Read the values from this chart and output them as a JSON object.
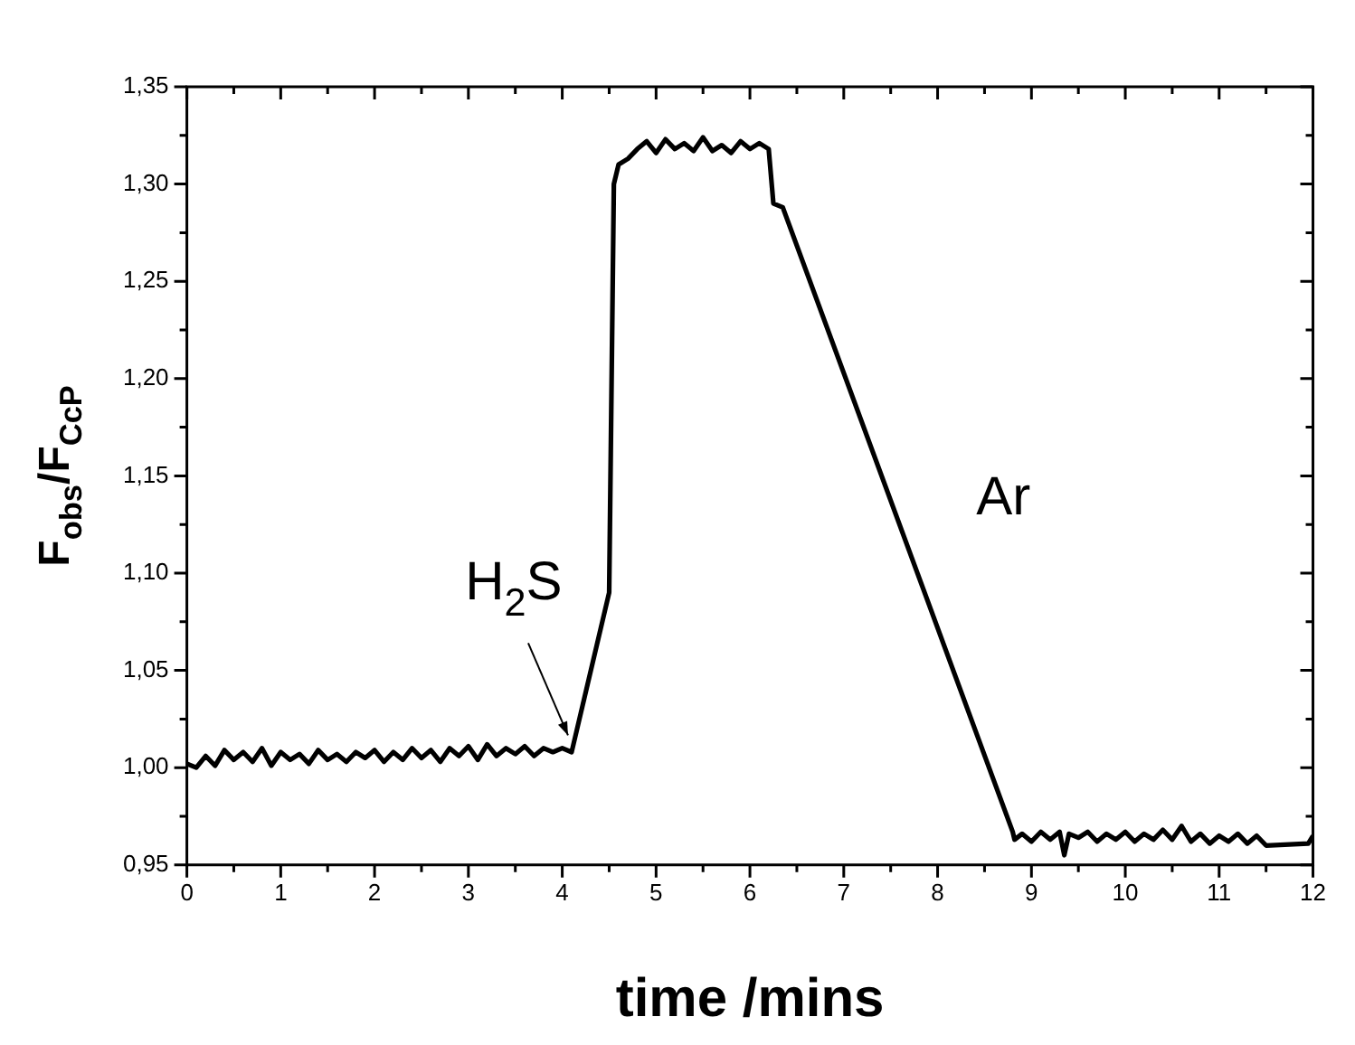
{
  "chart_data": {
    "type": "line",
    "xlabel": "time /mins",
    "ylabel": "F$_{obs}$/F$_{CcP}$",
    "annotations": [
      {
        "text": "H$_{2}$S",
        "x": 4.1,
        "y": 1.012
      },
      "Ar"
    ],
    "x": [
      0,
      0.1,
      0.2,
      0.3,
      0.4,
      0.5,
      0.6,
      0.7,
      0.8,
      0.9,
      1.0,
      1.1,
      1.2,
      1.3,
      1.4,
      1.5,
      1.6,
      1.7,
      1.8,
      1.9,
      2.0,
      2.1,
      2.2,
      2.3,
      2.4,
      2.5,
      2.6,
      2.7,
      2.8,
      2.9,
      3.0,
      3.1,
      3.2,
      3.3,
      3.4,
      3.5,
      3.6,
      3.7,
      3.8,
      3.9,
      4.0,
      4.1,
      4.5,
      4.55,
      4.6,
      4.7,
      4.8,
      4.9,
      5.0,
      5.1,
      5.2,
      5.3,
      5.4,
      5.5,
      5.6,
      5.7,
      5.8,
      5.9,
      6.0,
      6.1,
      6.2,
      6.25,
      6.35,
      8.8,
      8.82,
      8.9,
      9.0,
      9.1,
      9.2,
      9.3,
      9.35,
      9.4,
      9.5,
      9.6,
      9.7,
      9.8,
      9.9,
      10.0,
      10.1,
      10.2,
      10.3,
      10.4,
      10.5,
      10.6,
      10.7,
      10.8,
      10.9,
      11.0,
      11.1,
      11.2,
      11.3,
      11.4,
      11.5,
      11.95,
      12
    ],
    "series": [
      {
        "color": "#000000",
        "values": [
          1.002,
          1.0,
          1.006,
          1.001,
          1.009,
          1.004,
          1.008,
          1.003,
          1.01,
          1.001,
          1.008,
          1.004,
          1.007,
          1.002,
          1.009,
          1.004,
          1.007,
          1.003,
          1.008,
          1.005,
          1.009,
          1.003,
          1.008,
          1.004,
          1.01,
          1.005,
          1.009,
          1.003,
          1.01,
          1.006,
          1.011,
          1.004,
          1.012,
          1.006,
          1.01,
          1.007,
          1.011,
          1.006,
          1.01,
          1.008,
          1.01,
          1.008,
          1.09,
          1.3,
          1.31,
          1.313,
          1.318,
          1.322,
          1.316,
          1.323,
          1.318,
          1.321,
          1.317,
          1.324,
          1.317,
          1.32,
          1.316,
          1.322,
          1.318,
          1.321,
          1.318,
          1.29,
          1.288,
          0.967,
          0.963,
          0.966,
          0.962,
          0.967,
          0.963,
          0.967,
          0.955,
          0.966,
          0.964,
          0.967,
          0.962,
          0.966,
          0.963,
          0.967,
          0.962,
          0.966,
          0.963,
          0.968,
          0.963,
          0.97,
          0.962,
          0.966,
          0.961,
          0.965,
          0.962,
          0.966,
          0.961,
          0.965,
          0.96,
          0.961,
          0.965
        ]
      }
    ],
    "xlim": [
      0,
      12
    ],
    "xticks": [
      0,
      {
        "value": 0.5,
        "label": null
      },
      1,
      {
        "value": 1.5,
        "label": null
      },
      2,
      {
        "value": 2.5,
        "label": null
      },
      3,
      {
        "value": 3.5,
        "label": null
      },
      4,
      {
        "value": 4.5,
        "label": null
      },
      5,
      {
        "value": 5.5,
        "label": null
      },
      6,
      {
        "value": 6.5,
        "label": null
      },
      7,
      {
        "value": 7.5,
        "label": null
      },
      8,
      {
        "value": 8.5,
        "label": null
      },
      9,
      {
        "value": 9.5,
        "label": null
      },
      10,
      {
        "value": 10.5,
        "label": null
      },
      11,
      {
        "value": 11.5,
        "label": null
      },
      12
    ],
    "ylim": [
      0.95,
      1.35
    ],
    "yticks": [
      {
        "value": 0.95,
        "label": "0,95"
      },
      {
        "value": 0.975,
        "label": null
      },
      {
        "value": 1.0,
        "label": "1,00"
      },
      {
        "value": 1.025,
        "label": null
      },
      {
        "value": 1.05,
        "label": "1,05"
      },
      {
        "value": 1.075,
        "label": null
      },
      {
        "value": 1.1,
        "label": "1,10"
      },
      {
        "value": 1.125,
        "label": null
      },
      {
        "value": 1.15,
        "label": "1,15"
      },
      {
        "value": 1.175,
        "label": null
      },
      {
        "value": 1.2,
        "label": "1,20"
      },
      {
        "value": 1.225,
        "label": null
      },
      {
        "value": 1.25,
        "label": "1,25"
      },
      {
        "value": 1.275,
        "label": null
      },
      {
        "value": 1.3,
        "label": "1,30"
      },
      {
        "value": 1.325,
        "label": null
      },
      {
        "value": 1.35,
        "label": "1,35"
      }
    ],
    "marker": "none",
    "line_style": "solid",
    "legend": false,
    "grid": false
  }
}
